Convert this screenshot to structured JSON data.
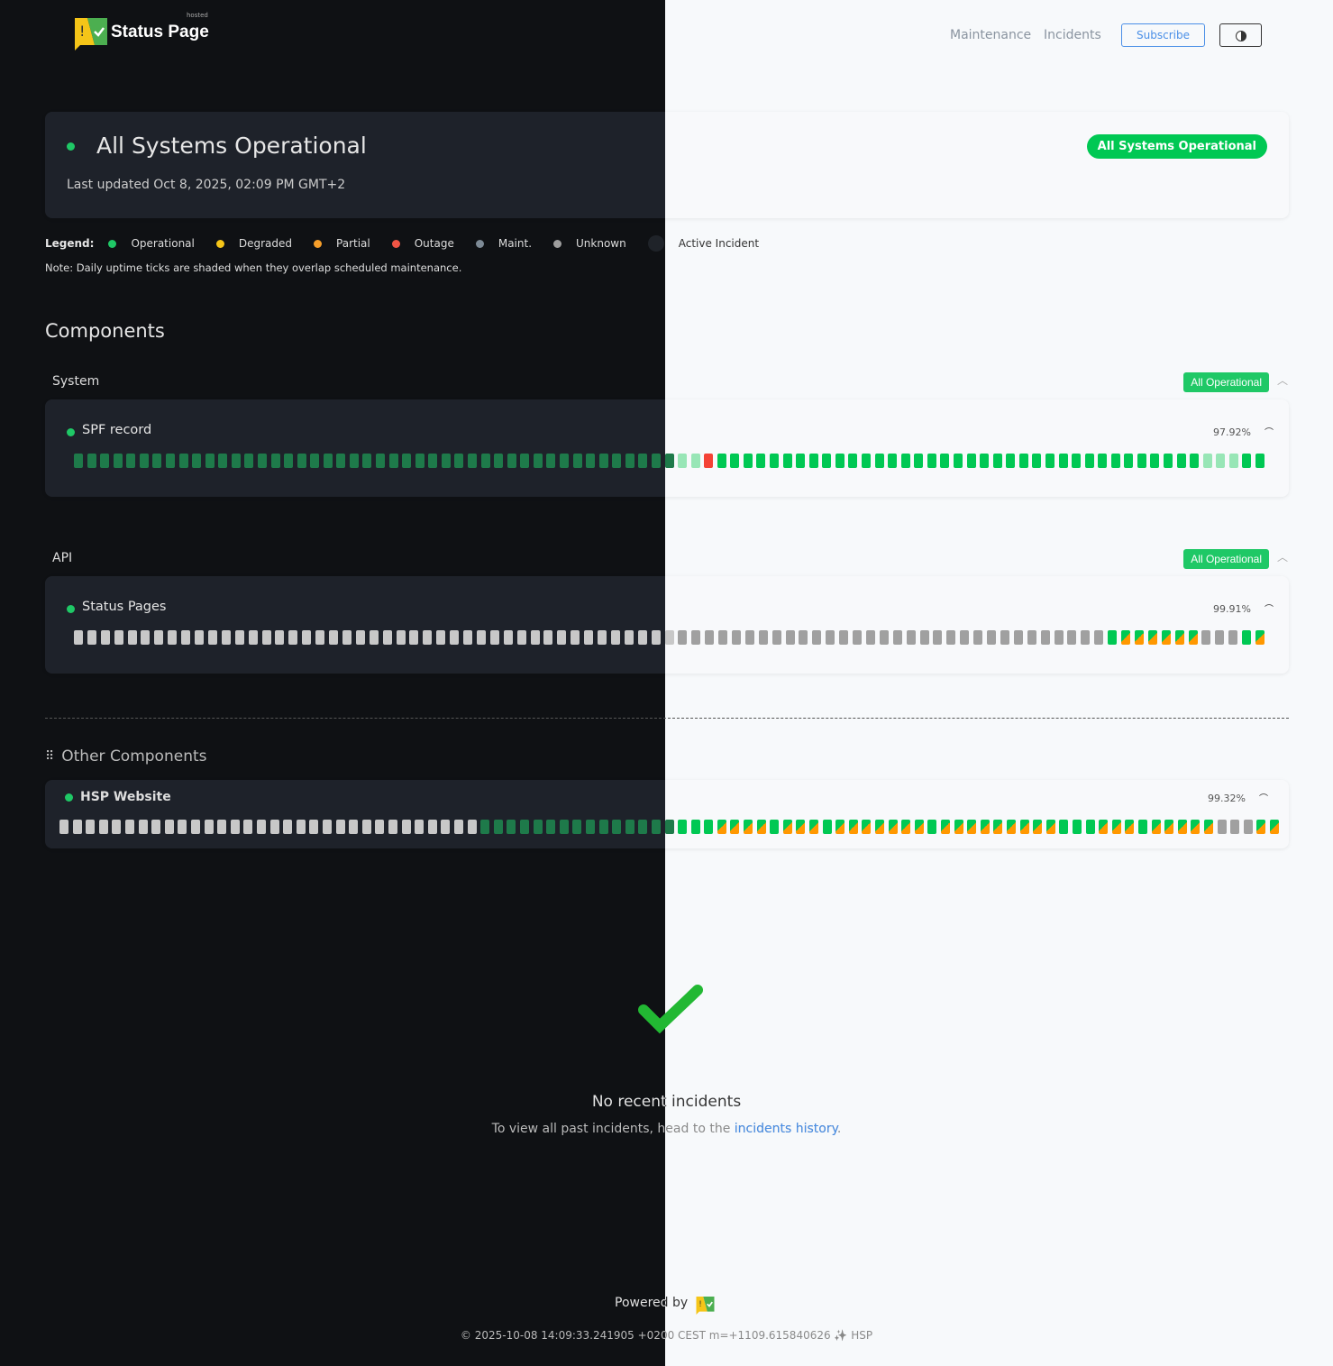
{
  "header": {
    "logo_text": "Status Page",
    "logo_sup": "hosted",
    "nav": [
      "Maintenance",
      "Incidents"
    ],
    "subscribe": "Subscribe",
    "theme_icon": "half-circle-icon"
  },
  "status": {
    "title": "All Systems Operational",
    "updated": "Last updated Oct 8, 2025, 02:09 PM GMT+2",
    "badge": "All Systems Operational"
  },
  "legend": {
    "label": "Legend:",
    "items": [
      {
        "label": "Operational",
        "color": "#1fc866"
      },
      {
        "label": "Degraded",
        "color": "#f5c518"
      },
      {
        "label": "Partial",
        "color": "#f59e2a"
      },
      {
        "label": "Outage",
        "color": "#f05545"
      },
      {
        "label": "Maint.",
        "color": "#7d8a96"
      },
      {
        "label": "Unknown",
        "color": "#9e9e9e"
      },
      {
        "label": "Active Incident",
        "color": "#1f2329"
      }
    ],
    "note": "Note: Daily uptime ticks are shaded when they overlap scheduled maintenance."
  },
  "components": {
    "heading": "Components",
    "groups": [
      {
        "name": "System",
        "badge": "All Operational",
        "items": [
          {
            "name": "SPF record",
            "uptime": "97.92%",
            "ticks": "gggggggggggggggggggggggggggggggggggggggggggggmmmrgggggggggggggggggggggggggggggggggggggmmmgg"
          }
        ]
      },
      {
        "name": "API",
        "badge": "All Operational",
        "items": [
          {
            "name": "Status Pages",
            "uptime": "99.91%",
            "ticks": "uuuuuuuuuuuuuuuuuuuuuuuuuuuuuuuuuuuuuuuuuuuuuuuuuuuuuuuuuuuuuuuuuuuuuuuuuuuuugppppppuuugp"
          }
        ]
      }
    ],
    "other_heading": "Other Components",
    "other": [
      {
        "name": "HSP Website",
        "uptime": "99.32%",
        "ticks": "uuuuuuuuuuuuuuuuuuuuuuuuuuuuuuuuggggggggggggggggggppppgpppgpppppppgpppppppppgggpppgpppppuuupp"
      }
    ]
  },
  "incidents": {
    "title": "No recent incidents",
    "text": "To view all past incidents, head to the",
    "link": "incidents history",
    "period": "."
  },
  "footer": {
    "powered": "Powered by",
    "copyright": "© 2025-10-08 14:09:33.241905 +0200 CEST m=+1109.615840626 ✨ HSP"
  },
  "colors": {
    "operational_dark": "#1e7a4a",
    "operational": "#00c853",
    "maint_light": "#98e6b6",
    "outage": "#f44336",
    "unknown_dark": "#c8c8c8",
    "unknown": "#a0a0a0",
    "partial": "#ff9800"
  }
}
